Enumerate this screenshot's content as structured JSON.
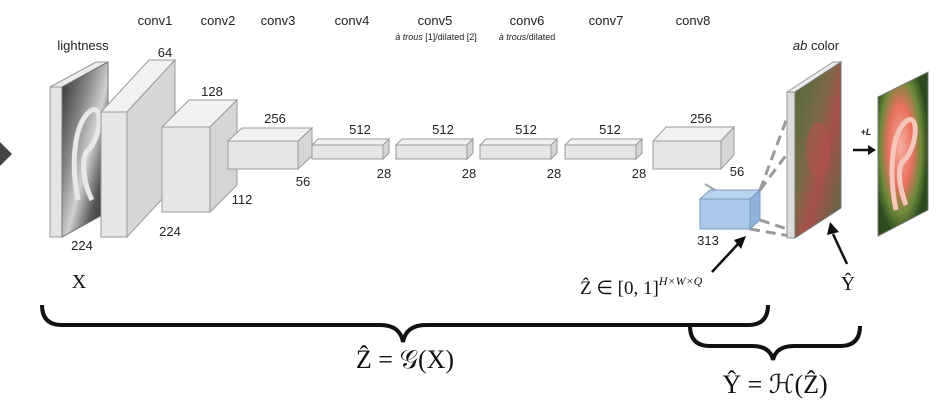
{
  "layers": [
    {
      "name": "conv1",
      "channels": "64",
      "spatial": "224"
    },
    {
      "name": "conv2",
      "channels": "128",
      "spatial": "112"
    },
    {
      "name": "conv3",
      "channels": "256",
      "spatial": "56"
    },
    {
      "name": "conv4",
      "channels": "512",
      "spatial": "28"
    },
    {
      "name": "conv5",
      "channels": "512",
      "spatial": "28",
      "note_italic": "à trous",
      "note_rest": " [1]/dilated [2]"
    },
    {
      "name": "conv6",
      "channels": "512",
      "spatial": "28",
      "note_italic": "à trous",
      "note_rest": "/dilated"
    },
    {
      "name": "conv7",
      "channels": "512",
      "spatial": "28"
    },
    {
      "name": "conv8",
      "channels": "256",
      "spatial": "56"
    }
  ],
  "input": {
    "label": "lightness",
    "size": "224",
    "symbol": "X"
  },
  "output_dist": {
    "channels": "313",
    "formula_main": "Ẑ ∈ [0, 1]",
    "formula_sup": "H×W×Q"
  },
  "ab": {
    "label_italic": "ab",
    "label_rest": " color",
    "symbol": "Ŷ"
  },
  "final": {
    "label": "+L"
  },
  "braces": {
    "g_formula": "Ẑ = 𝒢(X)",
    "h_formula": "Ŷ = ℋ(Ẑ)"
  }
}
